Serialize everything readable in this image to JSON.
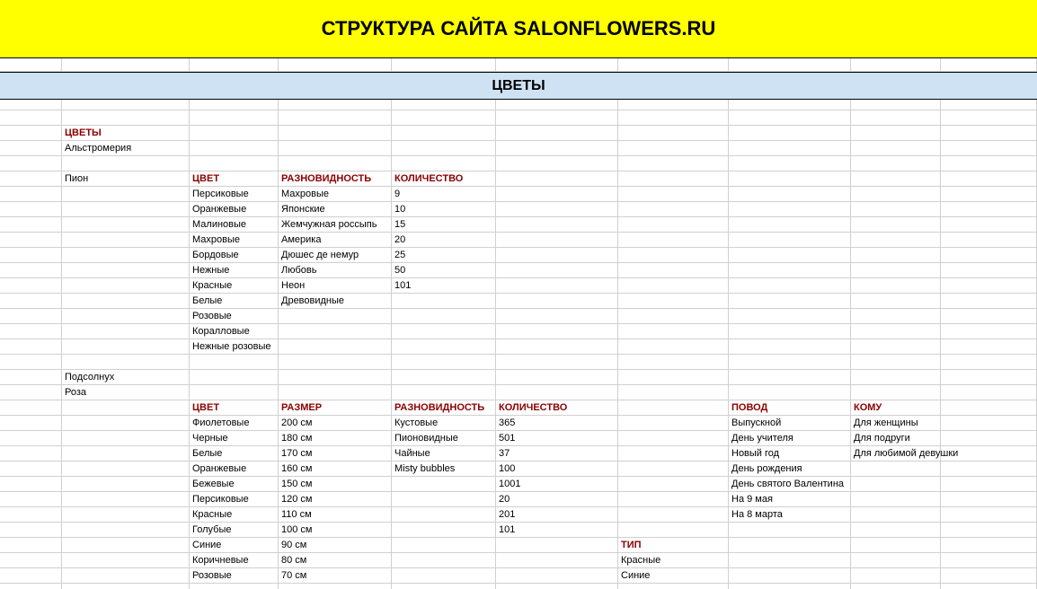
{
  "header": {
    "title": "СТРУКТУРА САЙТА SALONFLOWERS.RU"
  },
  "section": {
    "title": "ЦВЕТЫ"
  },
  "rows": [
    [],
    [],
    [
      null,
      "ЦВЕТЫ"
    ],
    [
      null,
      "Альстромерия"
    ],
    [],
    [
      null,
      "Пион",
      "ЦВЕТ",
      "РАЗНОВИДНОСТЬ",
      "КОЛИЧЕСТВО"
    ],
    [
      null,
      null,
      "Персиковые",
      "Махровые",
      9
    ],
    [
      null,
      null,
      "Оранжевые",
      "Японские",
      10
    ],
    [
      null,
      null,
      "Малиновые",
      "Жемчужная россыпь",
      15
    ],
    [
      null,
      null,
      "Махровые",
      "Америка",
      20
    ],
    [
      null,
      null,
      "Бордовые",
      "Дюшес де немур",
      25
    ],
    [
      null,
      null,
      "Нежные",
      "Любовь",
      50
    ],
    [
      null,
      null,
      "Красные",
      "Неон",
      101
    ],
    [
      null,
      null,
      "Белые",
      "Древовидные"
    ],
    [
      null,
      null,
      "Розовые"
    ],
    [
      null,
      null,
      "Коралловые"
    ],
    [
      null,
      null,
      "Нежные розовые"
    ],
    [],
    [
      null,
      "Подсолнух"
    ],
    [
      null,
      "Роза"
    ],
    [
      null,
      null,
      "ЦВЕТ",
      "РАЗМЕР",
      "РАЗНОВИДНОСТЬ",
      "КОЛИЧЕСТВО",
      null,
      "ПОВОД",
      "КОМУ"
    ],
    [
      null,
      null,
      "Фиолетовые",
      "200 см",
      "Кустовые",
      365,
      null,
      "Выпускной",
      "Для женщины"
    ],
    [
      null,
      null,
      "Черные",
      "180 см",
      "Пионовидные",
      501,
      null,
      "День учителя",
      "Для подруги"
    ],
    [
      null,
      null,
      "Белые",
      "170 см",
      "Чайные",
      37,
      null,
      "Новый год",
      "Для любимой девушки"
    ],
    [
      null,
      null,
      "Оранжевые",
      "160 см",
      "Misty bubbles",
      100,
      null,
      "День рождения"
    ],
    [
      null,
      null,
      "Бежевые",
      "150 см",
      null,
      1001,
      null,
      "День святого Валентина"
    ],
    [
      null,
      null,
      "Персиковые",
      "120 см",
      null,
      20,
      null,
      "На 9 мая"
    ],
    [
      null,
      null,
      "Красные",
      "110 см",
      null,
      201,
      null,
      "На 8 марта"
    ],
    [
      null,
      null,
      "Голубые",
      "100 см",
      null,
      101
    ],
    [
      null,
      null,
      "Синие",
      "90 см",
      null,
      null,
      "ТИП"
    ],
    [
      null,
      null,
      "Коричневые",
      "80 см",
      null,
      null,
      "Красные"
    ],
    [
      null,
      null,
      "Розовые",
      "70 см",
      null,
      null,
      "Синие"
    ],
    []
  ]
}
